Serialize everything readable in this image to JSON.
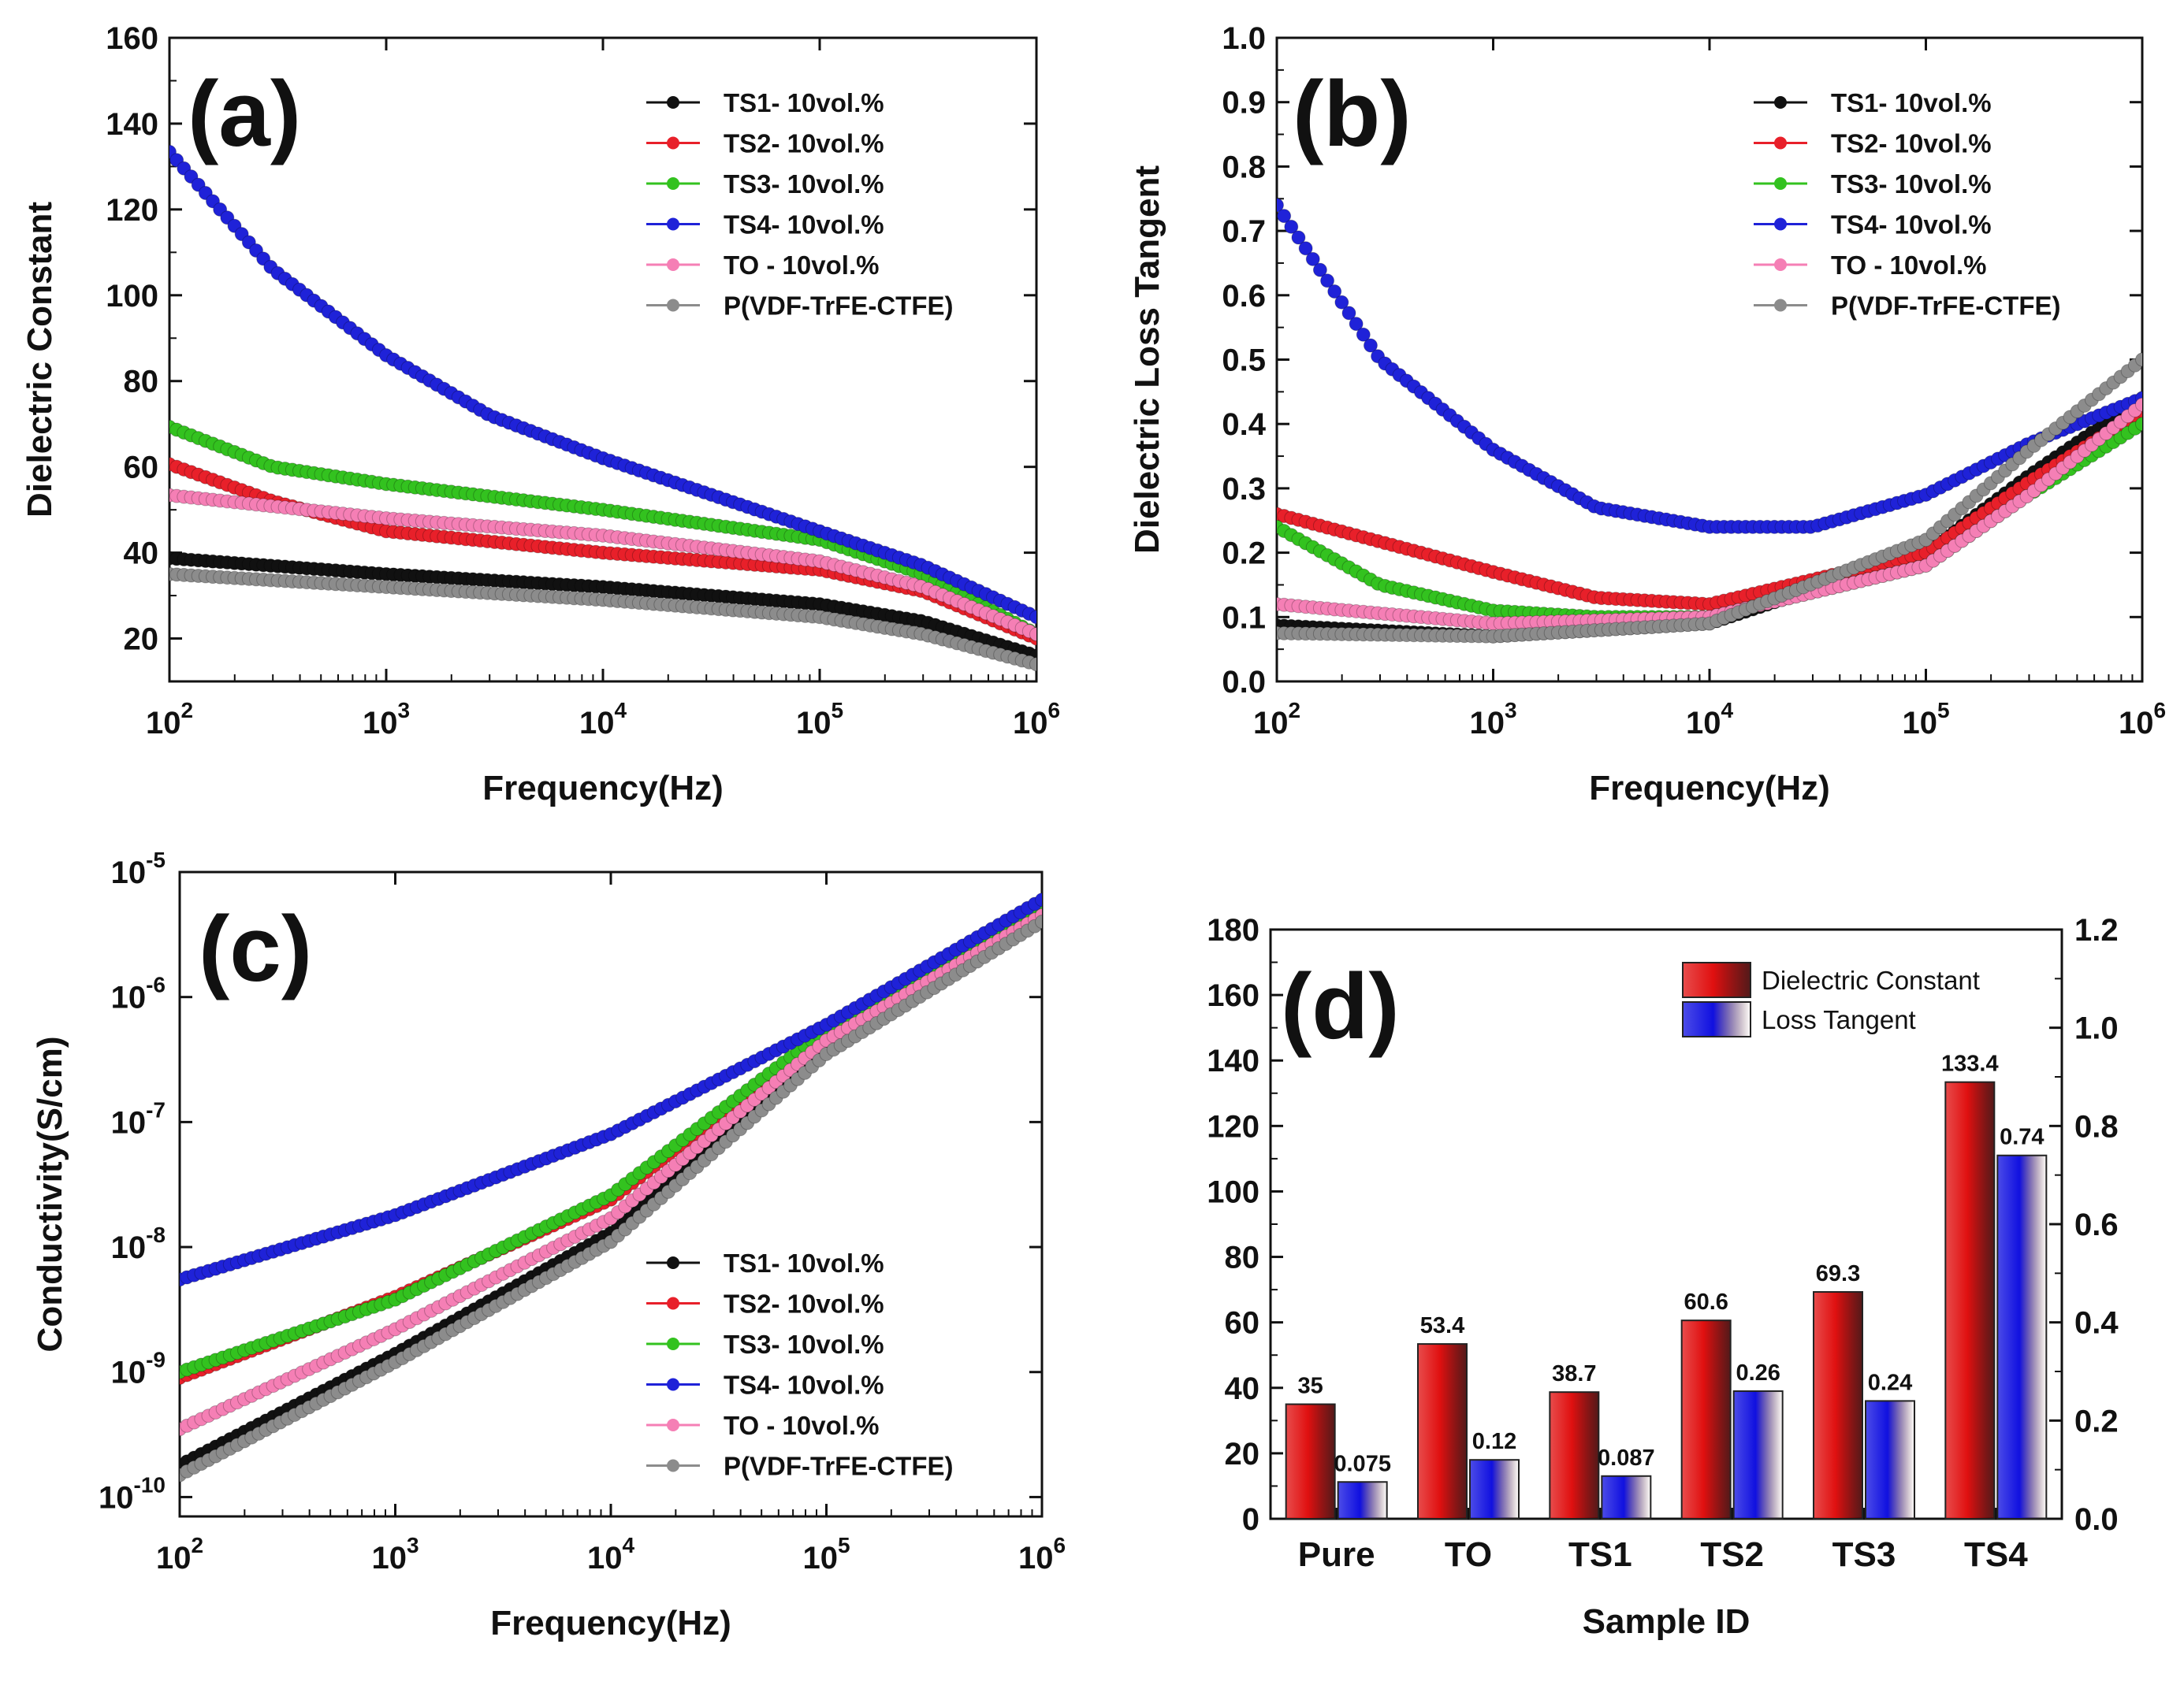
{
  "series_colors": {
    "TS1": "#111111",
    "TS2": "#e8202a",
    "TS3": "#33c21f",
    "TS4": "#1f22d8",
    "TO": "#f57fb5",
    "P": "#8c8c8c"
  },
  "chart_data": [
    {
      "id": "a",
      "panel_label": "(a)",
      "type": "line",
      "xscale": "log",
      "xlabel": "Frequency(Hz)",
      "ylabel": "Dielectric Constant",
      "xlim": [
        100,
        1000000
      ],
      "ylim": [
        10,
        160
      ],
      "xticks": [
        {
          "v": 100,
          "b": "10",
          "e": "2"
        },
        {
          "v": 1000,
          "b": "10",
          "e": "3"
        },
        {
          "v": 10000,
          "b": "10",
          "e": "4"
        },
        {
          "v": 100000,
          "b": "10",
          "e": "5"
        },
        {
          "v": 1000000,
          "b": "10",
          "e": "6"
        }
      ],
      "yticks": [
        {
          "v": 20,
          "t": "20"
        },
        {
          "v": 40,
          "t": "40"
        },
        {
          "v": 60,
          "t": "60"
        },
        {
          "v": 80,
          "t": "80"
        },
        {
          "v": 100,
          "t": "100"
        },
        {
          "v": 120,
          "t": "120"
        },
        {
          "v": 140,
          "t": "140"
        },
        {
          "v": 160,
          "t": "160"
        }
      ],
      "legend_position": "top-right",
      "series": [
        {
          "key": "TS1",
          "name": "TS1- 10vol.%",
          "x": [
            100,
            1000,
            10000,
            100000,
            300000,
            1000000
          ],
          "y": [
            38.7,
            35,
            32,
            28,
            24,
            16
          ]
        },
        {
          "key": "TS2",
          "name": "TS2- 10vol.%",
          "x": [
            100,
            300,
            1000,
            10000,
            100000,
            300000,
            1000000
          ],
          "y": [
            60.6,
            52,
            45,
            40,
            36,
            31,
            20
          ]
        },
        {
          "key": "TS3",
          "name": "TS3- 10vol.%",
          "x": [
            100,
            300,
            1000,
            10000,
            100000,
            300000,
            1000000
          ],
          "y": [
            69.3,
            60,
            56,
            50,
            43,
            35,
            21
          ]
        },
        {
          "key": "TS4",
          "name": "TS4- 10vol.%",
          "x": [
            100,
            300,
            1000,
            3000,
            10000,
            100000,
            300000,
            1000000
          ],
          "y": [
            133.4,
            106,
            86,
            72,
            62,
            45,
            37,
            25
          ]
        },
        {
          "key": "TO",
          "name": "TO - 10vol.%",
          "x": [
            100,
            1000,
            10000,
            100000,
            300000,
            1000000
          ],
          "y": [
            53.4,
            48,
            44,
            38,
            32,
            21
          ]
        },
        {
          "key": "P",
          "name": "P(VDF-TrFE-CTFE)",
          "x": [
            100,
            1000,
            10000,
            100000,
            300000,
            1000000
          ],
          "y": [
            35,
            32,
            29,
            25,
            21,
            14
          ]
        }
      ]
    },
    {
      "id": "b",
      "panel_label": "(b)",
      "type": "line",
      "xscale": "log",
      "xlabel": "Frequency(Hz)",
      "ylabel": "Dielectric Loss Tangent",
      "xlim": [
        100,
        1000000
      ],
      "ylim": [
        0,
        1.0
      ],
      "xticks": [
        {
          "v": 100,
          "b": "10",
          "e": "2"
        },
        {
          "v": 1000,
          "b": "10",
          "e": "3"
        },
        {
          "v": 10000,
          "b": "10",
          "e": "4"
        },
        {
          "v": 100000,
          "b": "10",
          "e": "5"
        },
        {
          "v": 1000000,
          "b": "10",
          "e": "6"
        }
      ],
      "yticks": [
        {
          "v": 0,
          "t": "0.0"
        },
        {
          "v": 0.1,
          "t": "0.1"
        },
        {
          "v": 0.2,
          "t": "0.2"
        },
        {
          "v": 0.3,
          "t": "0.3"
        },
        {
          "v": 0.4,
          "t": "0.4"
        },
        {
          "v": 0.5,
          "t": "0.5"
        },
        {
          "v": 0.6,
          "t": "0.6"
        },
        {
          "v": 0.7,
          "t": "0.7"
        },
        {
          "v": 0.8,
          "t": "0.8"
        },
        {
          "v": 0.9,
          "t": "0.9"
        },
        {
          "v": 1.0,
          "t": "1.0"
        }
      ],
      "legend_position": "top-right",
      "series": [
        {
          "key": "TS1",
          "name": "TS1- 10vol.%",
          "x": [
            100,
            1000,
            10000,
            100000,
            300000,
            1000000
          ],
          "y": [
            0.087,
            0.07,
            0.09,
            0.2,
            0.32,
            0.44
          ]
        },
        {
          "key": "TS2",
          "name": "TS2- 10vol.%",
          "x": [
            100,
            1000,
            3000,
            10000,
            100000,
            300000,
            1000000
          ],
          "y": [
            0.26,
            0.17,
            0.13,
            0.12,
            0.2,
            0.31,
            0.42
          ]
        },
        {
          "key": "TS3",
          "name": "TS3- 10vol.%",
          "x": [
            100,
            300,
            1000,
            3000,
            10000,
            100000,
            300000,
            1000000
          ],
          "y": [
            0.24,
            0.15,
            0.11,
            0.1,
            0.1,
            0.18,
            0.29,
            0.4
          ]
        },
        {
          "key": "TS4",
          "name": "TS4- 10vol.%",
          "x": [
            100,
            300,
            1000,
            3000,
            10000,
            30000,
            100000,
            300000,
            1000000
          ],
          "y": [
            0.74,
            0.5,
            0.36,
            0.27,
            0.24,
            0.24,
            0.29,
            0.37,
            0.44
          ]
        },
        {
          "key": "TO",
          "name": "TO - 10vol.%",
          "x": [
            100,
            1000,
            10000,
            100000,
            300000,
            1000000
          ],
          "y": [
            0.12,
            0.09,
            0.1,
            0.18,
            0.29,
            0.43
          ]
        },
        {
          "key": "P",
          "name": "P(VDF-TrFE-CTFE)",
          "x": [
            100,
            1000,
            10000,
            100000,
            300000,
            1000000
          ],
          "y": [
            0.075,
            0.07,
            0.09,
            0.22,
            0.36,
            0.5
          ]
        }
      ]
    },
    {
      "id": "c",
      "panel_label": "(c)",
      "type": "line",
      "xscale": "log",
      "yscale": "log",
      "xlabel": "Frequency(Hz)",
      "ylabel": "Conductivity(S/cm)",
      "xlim": [
        100,
        1000000
      ],
      "ylim": [
        7e-11,
        1e-05
      ],
      "xticks": [
        {
          "v": 100,
          "b": "10",
          "e": "2"
        },
        {
          "v": 1000,
          "b": "10",
          "e": "3"
        },
        {
          "v": 10000,
          "b": "10",
          "e": "4"
        },
        {
          "v": 100000,
          "b": "10",
          "e": "5"
        },
        {
          "v": 1000000,
          "b": "10",
          "e": "6"
        }
      ],
      "yticks": [
        {
          "v": 1e-10,
          "b": "10",
          "e": "-10"
        },
        {
          "v": 1e-09,
          "b": "10",
          "e": "-9"
        },
        {
          "v": 1e-08,
          "b": "10",
          "e": "-8"
        },
        {
          "v": 1e-07,
          "b": "10",
          "e": "-7"
        },
        {
          "v": 1e-06,
          "b": "10",
          "e": "-6"
        },
        {
          "v": 1e-05,
          "b": "10",
          "e": "-5"
        }
      ],
      "legend_position": "bottom-right",
      "series": [
        {
          "key": "TS1",
          "name": "TS1- 10vol.%",
          "x": [
            100,
            1000,
            10000,
            100000,
            1000000
          ],
          "y": [
            1.8e-10,
            1.4e-09,
            1.3e-08,
            4e-07,
            4.5e-06
          ]
        },
        {
          "key": "TS2",
          "name": "TS2- 10vol.%",
          "x": [
            100,
            1000,
            10000,
            100000,
            1000000
          ],
          "y": [
            9e-10,
            4e-09,
            2.4e-08,
            5e-07,
            5e-06
          ]
        },
        {
          "key": "TS3",
          "name": "TS3- 10vol.%",
          "x": [
            100,
            1000,
            10000,
            100000,
            1000000
          ],
          "y": [
            1e-09,
            3.8e-09,
            2.6e-08,
            5.5e-07,
            5e-06
          ]
        },
        {
          "key": "TS4",
          "name": "TS4- 10vol.%",
          "x": [
            100,
            1000,
            10000,
            100000,
            1000000
          ],
          "y": [
            5.5e-09,
            1.8e-08,
            8e-08,
            6e-07,
            6e-06
          ]
        },
        {
          "key": "TO",
          "name": "TO - 10vol.%",
          "x": [
            100,
            1000,
            10000,
            100000,
            1000000
          ],
          "y": [
            3.5e-10,
            2.2e-09,
            1.7e-08,
            4.5e-07,
            4.5e-06
          ]
        },
        {
          "key": "P",
          "name": "P(VDF-TrFE-CTFE)",
          "x": [
            100,
            1000,
            10000,
            100000,
            1000000
          ],
          "y": [
            1.5e-10,
            1.2e-09,
            1.1e-08,
            3.5e-07,
            4e-06
          ]
        }
      ]
    },
    {
      "id": "d",
      "panel_label": "(d)",
      "type": "bar",
      "xlabel": "Sample ID",
      "categories": [
        "Pure",
        "TO",
        "TS1",
        "TS2",
        "TS3",
        "TS4"
      ],
      "ylim_left": [
        0,
        180
      ],
      "ylim_right": [
        0,
        1.2
      ],
      "yticks_left": [
        "0",
        "20",
        "40",
        "60",
        "80",
        "100",
        "120",
        "140",
        "160",
        "180"
      ],
      "yticks_right": [
        "0.0",
        "0.2",
        "0.4",
        "0.6",
        "0.8",
        "1.0",
        "1.2"
      ],
      "legend_position": "top-right",
      "series": [
        {
          "name": "Dielectric Constant",
          "axis": "left",
          "color": "#e01010",
          "values": [
            35,
            53.4,
            38.7,
            60.6,
            69.3,
            133.4
          ],
          "labels": [
            "35",
            "53.4",
            "38.7",
            "60.6",
            "69.3",
            "133.4"
          ]
        },
        {
          "name": "Loss Tangent",
          "axis": "right",
          "color": "#1010e0",
          "values": [
            0.075,
            0.12,
            0.087,
            0.26,
            0.24,
            0.74
          ],
          "labels": [
            "0.075",
            "0.12",
            "0.087",
            "0.26",
            "0.24",
            "0.74"
          ]
        }
      ]
    }
  ]
}
